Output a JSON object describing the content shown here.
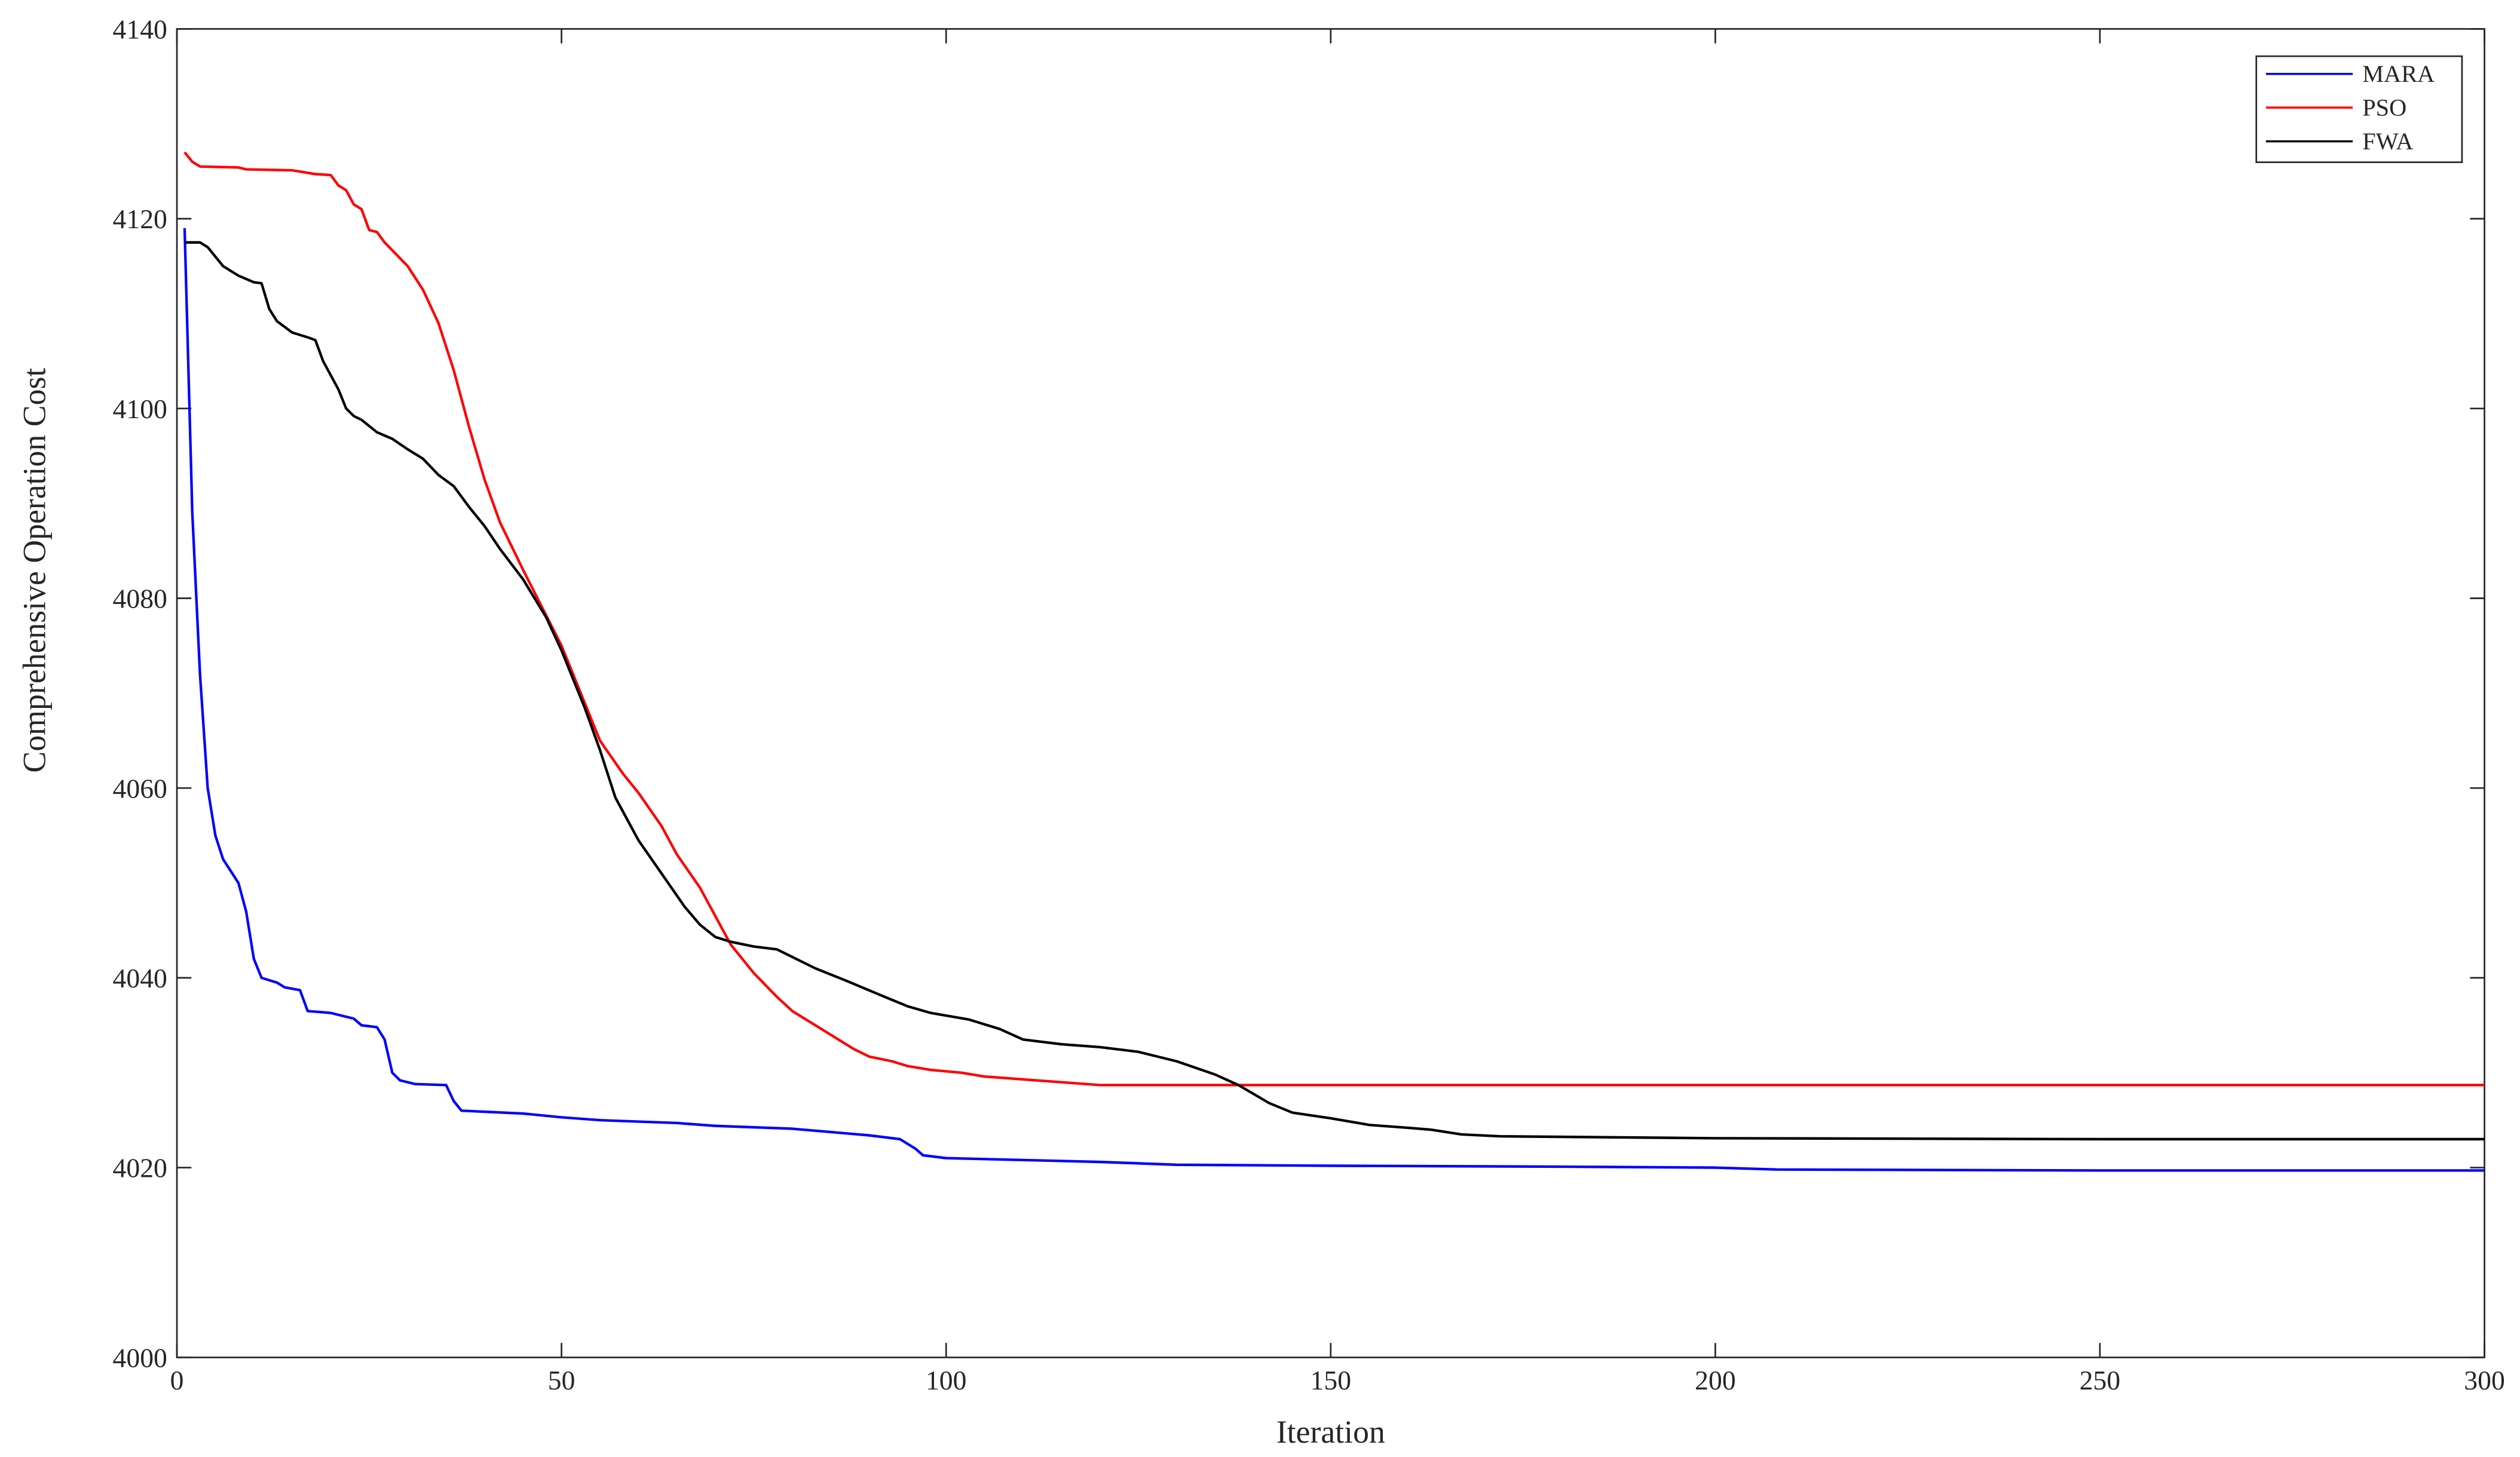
{
  "chart_data": {
    "type": "line",
    "xlabel": "Iteration",
    "ylabel": "Comprehensive Operation Cost",
    "xlim": [
      0,
      300
    ],
    "ylim": [
      4000,
      4140
    ],
    "xticks": [
      0,
      50,
      100,
      150,
      200,
      250,
      300
    ],
    "yticks": [
      4000,
      4020,
      4040,
      4060,
      4080,
      4100,
      4120,
      4140
    ],
    "grid": false,
    "legend": "upper right",
    "series": [
      {
        "name": "MARA",
        "color": "#0000ff",
        "x": [
          1,
          2,
          3,
          4,
          5,
          6,
          8,
          9,
          10,
          11,
          13,
          14,
          16,
          17,
          20,
          23,
          24,
          26,
          27,
          28,
          29,
          31,
          35,
          36,
          37,
          45,
          50,
          55,
          65,
          70,
          80,
          90,
          94,
          96,
          97,
          100,
          110,
          120,
          130,
          150,
          180,
          200,
          208,
          250,
          300
        ],
        "values": [
          4119,
          4089,
          4072,
          4060,
          4055,
          4052.5,
          4050,
          4047,
          4042,
          4040,
          4039.5,
          4039,
          4038.7,
          4036.5,
          4036.3,
          4035.7,
          4035,
          4034.8,
          4033.5,
          4030,
          4029.2,
          4028.8,
          4028.7,
          4027,
          4026,
          4025.7,
          4025.3,
          4025,
          4024.7,
          4024.4,
          4024.1,
          4023.4,
          4023,
          4022,
          4021.3,
          4021,
          4020.8,
          4020.6,
          4020.3,
          4020.2,
          4020.1,
          4020,
          4019.8,
          4019.7,
          4019.7
        ]
      },
      {
        "name": "PSO",
        "color": "#ff0000",
        "x": [
          1,
          2,
          3,
          8,
          9,
          15,
          18,
          20,
          21,
          22,
          23,
          24,
          25,
          26,
          27,
          30,
          32,
          34,
          36,
          38,
          40,
          42,
          45,
          50,
          55,
          58,
          60,
          63,
          65,
          68,
          70,
          72,
          75,
          78,
          80,
          85,
          88,
          90,
          93,
          95,
          98,
          102,
          105,
          110,
          115,
          120,
          300
        ],
        "values": [
          4127,
          4126,
          4125.5,
          4125.4,
          4125.2,
          4125.1,
          4124.7,
          4124.6,
          4123.5,
          4123,
          4121.5,
          4121,
          4118.8,
          4118.6,
          4117.5,
          4115,
          4112.5,
          4109,
          4104,
          4098,
          4092.5,
          4088,
          4083,
          4075,
          4065,
          4061.5,
          4059.5,
          4056,
          4053,
          4049.5,
          4046.5,
          4043.5,
          4040.5,
          4038,
          4036.5,
          4034,
          4032.5,
          4031.7,
          4031.2,
          4030.7,
          4030.3,
          4030,
          4029.6,
          4029.3,
          4029,
          4028.7,
          4028.7
        ]
      },
      {
        "name": "FWA",
        "color": "#000000",
        "x": [
          1,
          3,
          4,
          6,
          8,
          10,
          11,
          12,
          13,
          15,
          17,
          18,
          19,
          21,
          22,
          23,
          24,
          26,
          28,
          30,
          32,
          34,
          36,
          38,
          40,
          42,
          45,
          48,
          50,
          53,
          55,
          57,
          60,
          63,
          66,
          68,
          70,
          72,
          75,
          78,
          80,
          83,
          87,
          92,
          95,
          98,
          103,
          107,
          110,
          115,
          120,
          125,
          130,
          135,
          138,
          142,
          145,
          150,
          155,
          160,
          163,
          167,
          172,
          200,
          250,
          300
        ],
        "values": [
          4117.5,
          4117.5,
          4117,
          4115,
          4114,
          4113.3,
          4113.2,
          4110.5,
          4109.2,
          4108,
          4107.5,
          4107.2,
          4105,
          4102,
          4100,
          4099.2,
          4098.8,
          4097.5,
          4096.8,
          4095.7,
          4094.7,
          4093,
          4091.8,
          4089.6,
          4087.6,
          4085.2,
          4082,
          4078,
          4074.5,
          4068.5,
          4064,
          4059,
          4054.5,
          4051,
          4047.5,
          4045.6,
          4044.3,
          4043.8,
          4043.3,
          4043,
          4042.2,
          4041,
          4039.7,
          4038,
          4037,
          4036.3,
          4035.6,
          4034.6,
          4033.5,
          4033,
          4032.7,
          4032.2,
          4031.2,
          4029.8,
          4028.7,
          4026.8,
          4025.8,
          4025.2,
          4024.5,
          4024.2,
          4024,
          4023.5,
          4023.3,
          4023.1,
          4023,
          4023
        ]
      }
    ]
  }
}
